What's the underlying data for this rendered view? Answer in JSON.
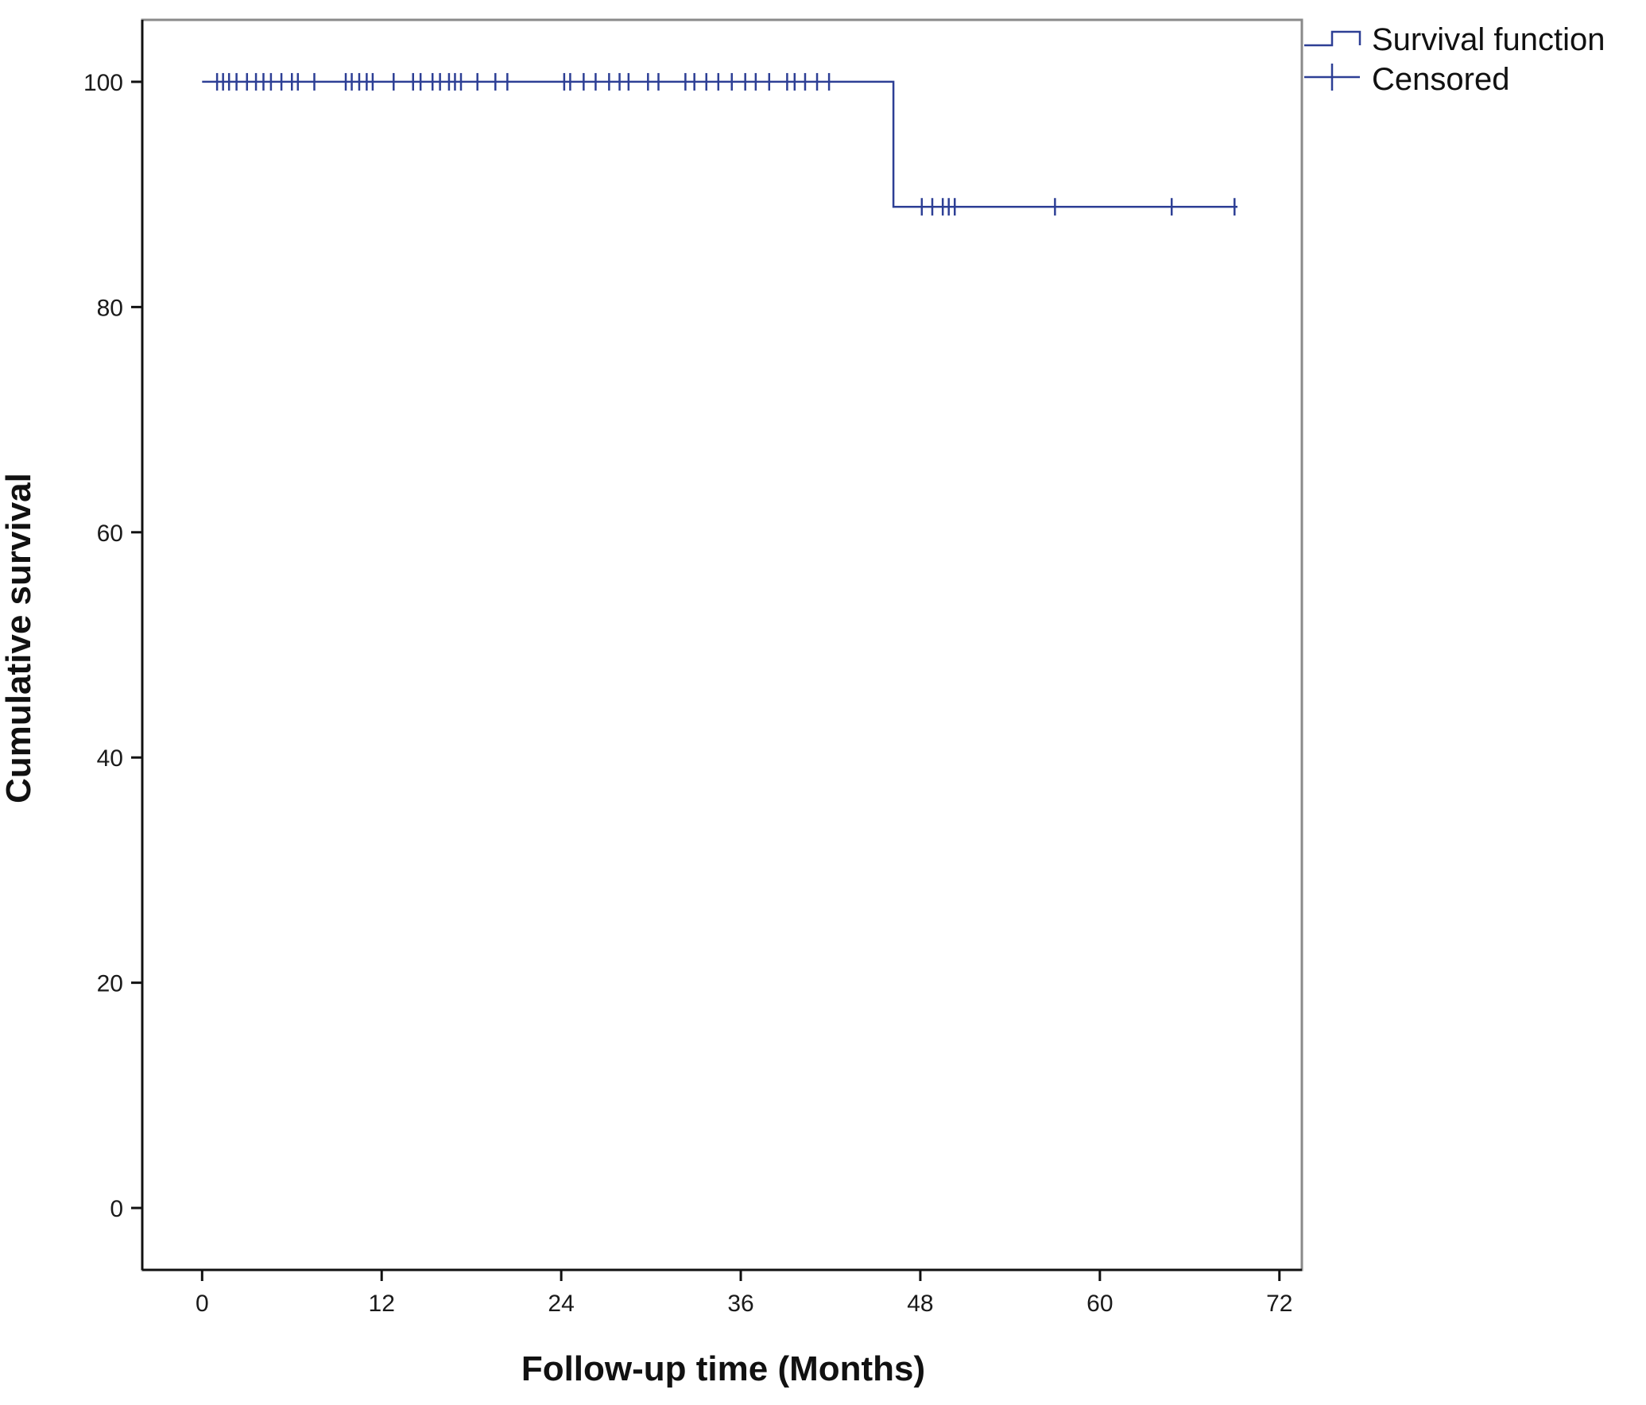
{
  "chart_data": {
    "type": "line",
    "title": "",
    "xlabel": "Follow-up time (Months)",
    "ylabel": "Cumulative survival",
    "xlim": [
      -4,
      73.5
    ],
    "ylim": [
      -5.5,
      105.5
    ],
    "x_ticks": [
      0,
      12,
      24,
      36,
      48,
      60,
      72
    ],
    "x_tick_labels": [
      "0",
      "12",
      "24",
      "36",
      "48",
      "60",
      "72"
    ],
    "y_ticks": [
      0,
      20,
      40,
      60,
      80,
      100
    ],
    "y_tick_labels": [
      "0",
      "20",
      "40",
      "60",
      "80",
      "100"
    ],
    "grid": false,
    "legend_position": "top-right outside",
    "series": [
      {
        "name": "Survival function",
        "kind": "step",
        "color": "#2d3f95",
        "x": [
          0,
          46.2,
          46.2,
          69.2
        ],
        "y": [
          100,
          100,
          88.9,
          88.9
        ]
      },
      {
        "name": "Censored",
        "kind": "marker",
        "color": "#2d3f95",
        "points": [
          {
            "x": 1.0,
            "y": 100
          },
          {
            "x": 1.4,
            "y": 100
          },
          {
            "x": 1.8,
            "y": 100
          },
          {
            "x": 2.3,
            "y": 100
          },
          {
            "x": 3.0,
            "y": 100
          },
          {
            "x": 3.6,
            "y": 100
          },
          {
            "x": 4.1,
            "y": 100
          },
          {
            "x": 4.6,
            "y": 100
          },
          {
            "x": 5.3,
            "y": 100
          },
          {
            "x": 6.0,
            "y": 100
          },
          {
            "x": 6.4,
            "y": 100
          },
          {
            "x": 7.5,
            "y": 100
          },
          {
            "x": 9.6,
            "y": 100
          },
          {
            "x": 10.0,
            "y": 100
          },
          {
            "x": 10.5,
            "y": 100
          },
          {
            "x": 11.0,
            "y": 100
          },
          {
            "x": 11.4,
            "y": 100
          },
          {
            "x": 12.8,
            "y": 100
          },
          {
            "x": 14.1,
            "y": 100
          },
          {
            "x": 14.6,
            "y": 100
          },
          {
            "x": 15.4,
            "y": 100
          },
          {
            "x": 15.9,
            "y": 100
          },
          {
            "x": 16.5,
            "y": 100
          },
          {
            "x": 16.9,
            "y": 100
          },
          {
            "x": 17.3,
            "y": 100
          },
          {
            "x": 18.4,
            "y": 100
          },
          {
            "x": 19.6,
            "y": 100
          },
          {
            "x": 20.4,
            "y": 100
          },
          {
            "x": 24.2,
            "y": 100
          },
          {
            "x": 24.6,
            "y": 100
          },
          {
            "x": 25.5,
            "y": 100
          },
          {
            "x": 26.3,
            "y": 100
          },
          {
            "x": 27.2,
            "y": 100
          },
          {
            "x": 27.9,
            "y": 100
          },
          {
            "x": 28.5,
            "y": 100
          },
          {
            "x": 29.8,
            "y": 100
          },
          {
            "x": 30.5,
            "y": 100
          },
          {
            "x": 32.3,
            "y": 100
          },
          {
            "x": 32.9,
            "y": 100
          },
          {
            "x": 33.7,
            "y": 100
          },
          {
            "x": 34.5,
            "y": 100
          },
          {
            "x": 35.4,
            "y": 100
          },
          {
            "x": 36.3,
            "y": 100
          },
          {
            "x": 37.0,
            "y": 100
          },
          {
            "x": 37.9,
            "y": 100
          },
          {
            "x": 39.1,
            "y": 100
          },
          {
            "x": 39.6,
            "y": 100
          },
          {
            "x": 40.3,
            "y": 100
          },
          {
            "x": 41.1,
            "y": 100
          },
          {
            "x": 41.9,
            "y": 100
          },
          {
            "x": 48.1,
            "y": 88.9
          },
          {
            "x": 48.8,
            "y": 88.9
          },
          {
            "x": 49.5,
            "y": 88.9
          },
          {
            "x": 49.9,
            "y": 88.9
          },
          {
            "x": 50.3,
            "y": 88.9
          },
          {
            "x": 57.0,
            "y": 88.9
          },
          {
            "x": 64.8,
            "y": 88.9
          },
          {
            "x": 69.0,
            "y": 88.9
          }
        ]
      }
    ]
  }
}
